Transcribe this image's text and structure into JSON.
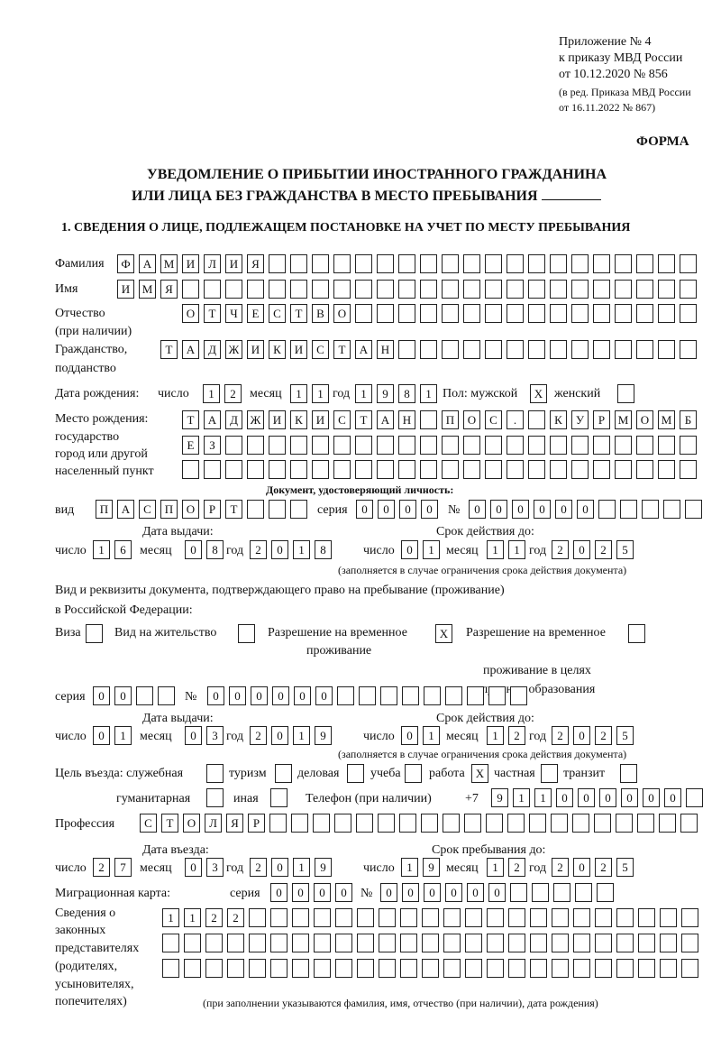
{
  "header": {
    "annex_line1": "Приложение № 4",
    "annex_line2": "к приказу МВД России",
    "annex_line3": "от 10.12.2020 № 856",
    "annex_line4": "(в ред. Приказа МВД России",
    "annex_line5": "от 16.11.2022 № 867)",
    "form_label": "ФОРМА",
    "title_line1": "УВЕДОМЛЕНИЕ О ПРИБЫТИИ ИНОСТРАННОГО ГРАЖДАНИНА",
    "title_line2": "ИЛИ ЛИЦА БЕЗ ГРАЖДАНСТВА В МЕСТО ПРЕБЫВАНИЯ",
    "section1": "1. СВЕДЕНИЯ О ЛИЦЕ, ПОДЛЕЖАЩЕМ ПОСТАНОВКЕ НА УЧЕТ ПО МЕСТУ ПРЕБЫВАНИЯ"
  },
  "labels": {
    "surname": "Фамилия",
    "name": "Имя",
    "patronymic1": "Отчество",
    "patronymic2": "(при наличии)",
    "citizenship1": "Гражданство,",
    "citizenship2": "подданство",
    "birth_date": "Дата рождения:",
    "day": "число",
    "month": "месяц",
    "year": "год",
    "sex": "Пол: мужской",
    "female": "женский",
    "birthplace1": "Место рождения:",
    "birthplace2": "государство",
    "birthplace3": "город или другой",
    "birthplace4": "населенный пункт",
    "id_doc": "Документ, удостоверяющий личность:",
    "kind": "вид",
    "series": "серия",
    "number": "№",
    "issue_date": "Дата выдачи:",
    "valid_until": "Срок действия до:",
    "valid_note": "(заполняется в случае ограничения срока действия документа)",
    "stay_doc1": "Вид и реквизиты документа, подтверждающего право на пребывание (проживание)",
    "stay_doc2": "в Российской Федерации:",
    "visa": "Виза",
    "residence": "Вид на жительство",
    "temp1": "Разрешение на временное",
    "temp2": "проживание",
    "edu1": "Разрешение на временное",
    "edu2": "проживание в целях",
    "edu3": "получения образования",
    "purpose": "Цель въезда: служебная",
    "tourism": "туризм",
    "business": "деловая",
    "study": "учеба",
    "work": "работа",
    "private": "частная",
    "transit": "транзит",
    "humanitarian": "гуманитарная",
    "other": "иная",
    "phone": "Телефон (при наличии)",
    "phone_prefix": "+7",
    "profession": "Профессия",
    "entry_date": "Дата въезда:",
    "stay_until": "Срок пребывания до:",
    "migration_card": "Миграционная карта:",
    "reps1": "Сведения о",
    "reps2": "законных",
    "reps3": "представителях",
    "reps4": "(родителях,",
    "reps5": "усыновителях,",
    "reps6": "попечителях)",
    "reps_note": "(при заполнении указываются фамилия, имя, отчество (при наличии), дата рождения)"
  },
  "person": {
    "surname": "ФАМИЛИЯ",
    "name": "ИМЯ",
    "patronymic": "ОТЧЕСТВО",
    "citizenship": "ТАДЖИКИСТАН",
    "birth_day": "12",
    "birth_month": "11",
    "birth_year": "1981",
    "sex_male": true,
    "sex_female": false,
    "birthplace_line1": "ТАДЖИКИСТАН ПОС. КУРМОМБ",
    "birthplace_line2": "ЕЗ",
    "birthplace_line3": ""
  },
  "id_document": {
    "kind": "ПАСПОРТ",
    "series": "0000",
    "number": "000000",
    "issue_day": "16",
    "issue_month": "08",
    "issue_year": "2018",
    "valid_day": "01",
    "valid_month": "11",
    "valid_year": "2025"
  },
  "stay_document": {
    "visa": false,
    "residence_permit": false,
    "temporary_residence": true,
    "temporary_residence_education": false,
    "series": "00",
    "number": "000000",
    "issue_day": "01",
    "issue_month": "03",
    "issue_year": "2019",
    "valid_day": "01",
    "valid_month": "12",
    "valid_year": "2025"
  },
  "purpose": {
    "official": false,
    "tourism": false,
    "business": false,
    "study": false,
    "work": true,
    "private": false,
    "transit": false,
    "humanitarian": false,
    "other": false,
    "check_mark": "X"
  },
  "phone": "911000000",
  "profession": "СТОЛЯР",
  "entry": {
    "entry_day": "27",
    "entry_month": "03",
    "entry_year": "2019",
    "stay_day": "19",
    "stay_month": "12",
    "stay_year": "2025"
  },
  "migration_card": {
    "series": "0000",
    "number": "000000"
  },
  "representatives": {
    "line1": "1122",
    "line2": "",
    "line3": ""
  }
}
